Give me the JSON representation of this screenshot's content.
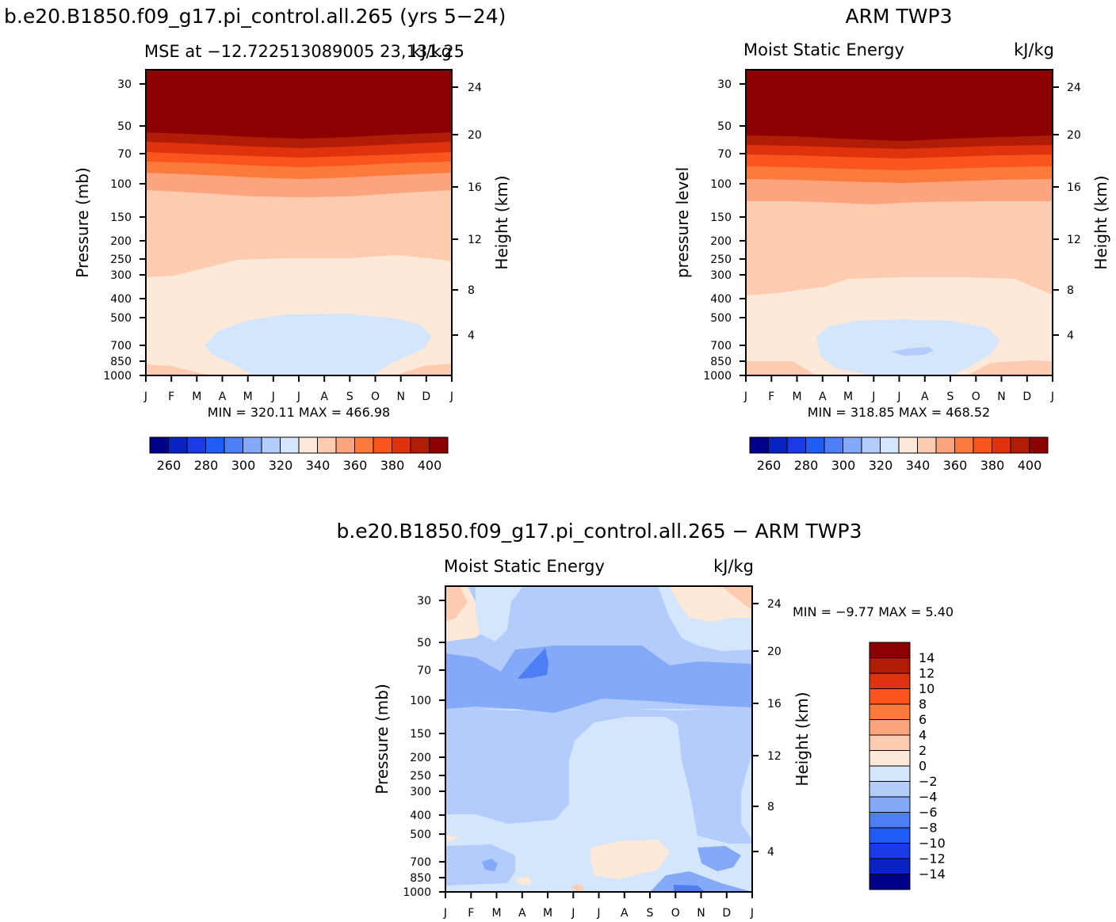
{
  "chart_data": [
    {
      "type": "heatmap",
      "panel": "top-left",
      "title": "b.e20.B1850.f09_g17.pi_control.all.265 (yrs 5−24)",
      "subtitle_left": "MSE at −12.722513089005 23,131.25",
      "subtitle_right": "kJ/kg",
      "ylabel": "Pressure (mb)",
      "ylabel_right": "Height (km)",
      "x_ticks": [
        "J",
        "F",
        "M",
        "A",
        "M",
        "J",
        "J",
        "A",
        "S",
        "O",
        "N",
        "D",
        "J"
      ],
      "y_ticks": [
        "30",
        "50",
        "70",
        "100",
        "150",
        "200",
        "250",
        "300",
        "400",
        "500",
        "700",
        "850",
        "1000"
      ],
      "y_ticks_right": [
        "24",
        "20",
        "16",
        "12",
        "8",
        "4"
      ],
      "stats": "MIN =  320.11  MAX =  466.98",
      "min": 320.11,
      "max": 466.98,
      "colorbar_ticks": [
        "260",
        "280",
        "300",
        "320",
        "340",
        "360",
        "380",
        "400"
      ],
      "bands": [
        {
          "level": 410,
          "color": "#8b0000",
          "pressure_range": [
            30,
            55
          ]
        },
        {
          "level": 400,
          "color": "#b01c06",
          "pressure_range": [
            55,
            62
          ]
        },
        {
          "level": 390,
          "color": "#e0320c",
          "pressure_range": [
            62,
            70
          ]
        },
        {
          "level": 380,
          "color": "#f9551d",
          "pressure_range": [
            70,
            80
          ]
        },
        {
          "level": 370,
          "color": "#fd7a3d",
          "pressure_range": [
            80,
            90
          ]
        },
        {
          "level": 360,
          "color": "#fca47d",
          "pressure_range": [
            90,
            115
          ]
        },
        {
          "level": 350,
          "color": "#fdcbb0",
          "pressure_range": [
            115,
            300
          ]
        },
        {
          "level": 340,
          "color": "#fee8d8",
          "pressure_range": [
            300,
            1000
          ]
        },
        {
          "level": 320,
          "color": "#d4e6fb",
          "pressure_range": [
            500,
            1000
          ],
          "months": [
            "M",
            "N"
          ]
        }
      ]
    },
    {
      "type": "heatmap",
      "panel": "top-right",
      "title": "ARM TWP3",
      "subtitle_left": "Moist Static Energy",
      "subtitle_right": "kJ/kg",
      "ylabel": "pressure level",
      "ylabel_right": "Height (km)",
      "x_ticks": [
        "J",
        "F",
        "M",
        "A",
        "M",
        "J",
        "J",
        "A",
        "S",
        "O",
        "N",
        "D",
        "J"
      ],
      "y_ticks": [
        "30",
        "50",
        "70",
        "100",
        "150",
        "200",
        "250",
        "300",
        "400",
        "500",
        "700",
        "850",
        "1000"
      ],
      "y_ticks_right": [
        "24",
        "20",
        "16",
        "12",
        "8",
        "4"
      ],
      "stats": "MIN =  318.85  MAX =  468.52",
      "min": 318.85,
      "max": 468.52,
      "colorbar_ticks": [
        "260",
        "280",
        "300",
        "320",
        "340",
        "360",
        "380",
        "400"
      ]
    },
    {
      "type": "heatmap",
      "panel": "bottom",
      "title": "b.e20.B1850.f09_g17.pi_control.all.265 − ARM TWP3",
      "subtitle_left": "Moist Static Energy",
      "subtitle_right": "kJ/kg",
      "ylabel": "Pressure (mb)",
      "ylabel_right": "Height (km)",
      "x_ticks": [
        "J",
        "F",
        "M",
        "A",
        "M",
        "J",
        "J",
        "A",
        "S",
        "O",
        "N",
        "D",
        "J"
      ],
      "y_ticks": [
        "30",
        "50",
        "70",
        "100",
        "150",
        "200",
        "250",
        "300",
        "400",
        "500",
        "700",
        "850",
        "1000"
      ],
      "y_ticks_right": [
        "24",
        "20",
        "16",
        "12",
        "8",
        "4"
      ],
      "stats": "MIN =    −9.77  MAX =     5.40",
      "min": -9.77,
      "max": 5.4,
      "colorbar_ticks": [
        "14",
        "12",
        "10",
        "8",
        "6",
        "4",
        "2",
        "0",
        "−2",
        "−4",
        "−6",
        "−8",
        "−10",
        "−12",
        "−14"
      ]
    }
  ],
  "colors": {
    "mse_scale": [
      "#00008b",
      "#0a22c2",
      "#1a3ae8",
      "#1e5cf5",
      "#4d7ef6",
      "#85a9f9",
      "#b4ccfb",
      "#d4e6fb",
      "#fee8d8",
      "#fdcbb0",
      "#fca47d",
      "#fd7a3d",
      "#f9551d",
      "#e0320c",
      "#b01c06",
      "#8b0000"
    ],
    "diff_scale": [
      "#8b0000",
      "#b01c06",
      "#e0320c",
      "#f9551d",
      "#fd7a3d",
      "#fca47d",
      "#fdcbb0",
      "#fee8d8",
      "#d4e6fb",
      "#b4ccfb",
      "#85a9f9",
      "#4d7ef6",
      "#1e5cf5",
      "#1a3ae8",
      "#0a22c2",
      "#00008b"
    ]
  }
}
